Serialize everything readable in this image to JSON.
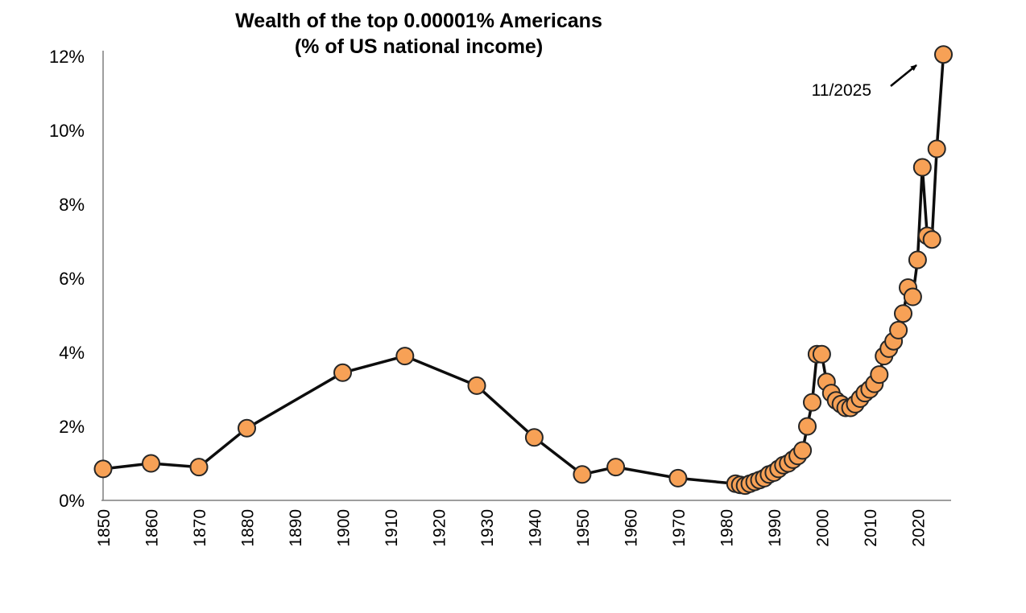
{
  "chart_data": {
    "type": "line",
    "title": "Wealth of the top 0.00001% Americans",
    "subtitle": "(% of US national income)",
    "xlabel": "",
    "ylabel": "",
    "xlim": [
      1850,
      2027
    ],
    "ylim": [
      0,
      12
    ],
    "grid": false,
    "legend": "none",
    "x_ticks": [
      1850,
      1860,
      1870,
      1880,
      1890,
      1900,
      1910,
      1920,
      1930,
      1940,
      1950,
      1960,
      1970,
      1980,
      1990,
      2000,
      2010,
      2020
    ],
    "y_ticks": [
      0,
      2,
      4,
      6,
      8,
      10,
      12
    ],
    "y_tick_labels": [
      "0%",
      "2%",
      "4%",
      "6%",
      "8%",
      "10%",
      "12%"
    ],
    "annotation": {
      "label": "11/2025",
      "target_x": 2025.4,
      "target_y": 12.05
    },
    "series": [
      {
        "name": "Wealth of the top 0.00001% Americans (% of US national income)",
        "points": [
          [
            1850,
            0.85
          ],
          [
            1860,
            1.0
          ],
          [
            1870,
            0.9
          ],
          [
            1880,
            1.95
          ],
          [
            1900,
            3.45
          ],
          [
            1913,
            3.9
          ],
          [
            1928,
            3.1
          ],
          [
            1940,
            1.7
          ],
          [
            1950,
            0.7
          ],
          [
            1957,
            0.9
          ],
          [
            1970,
            0.6
          ],
          [
            1982,
            0.45
          ],
          [
            1983,
            0.42
          ],
          [
            1984,
            0.4
          ],
          [
            1985,
            0.45
          ],
          [
            1986,
            0.5
          ],
          [
            1987,
            0.55
          ],
          [
            1988,
            0.6
          ],
          [
            1989,
            0.7
          ],
          [
            1990,
            0.75
          ],
          [
            1991,
            0.85
          ],
          [
            1992,
            0.95
          ],
          [
            1993,
            1.0
          ],
          [
            1994,
            1.1
          ],
          [
            1995,
            1.2
          ],
          [
            1996,
            1.35
          ],
          [
            1997,
            2.0
          ],
          [
            1998,
            2.65
          ],
          [
            1999,
            3.95
          ],
          [
            2000,
            3.95
          ],
          [
            2001,
            3.2
          ],
          [
            2002,
            2.9
          ],
          [
            2003,
            2.7
          ],
          [
            2004,
            2.6
          ],
          [
            2005,
            2.5
          ],
          [
            2006,
            2.5
          ],
          [
            2007,
            2.6
          ],
          [
            2008,
            2.75
          ],
          [
            2009,
            2.9
          ],
          [
            2010,
            3.0
          ],
          [
            2011,
            3.15
          ],
          [
            2012,
            3.4
          ],
          [
            2013,
            3.9
          ],
          [
            2014,
            4.1
          ],
          [
            2015,
            4.3
          ],
          [
            2016,
            4.6
          ],
          [
            2017,
            5.05
          ],
          [
            2018,
            5.75
          ],
          [
            2019,
            5.5
          ],
          [
            2020,
            6.5
          ],
          [
            2021,
            9.0
          ],
          [
            2022,
            7.15
          ],
          [
            2023,
            7.05
          ],
          [
            2024,
            9.5
          ],
          [
            2025.4,
            12.05
          ]
        ]
      }
    ],
    "colors": {
      "marker_fill": "#F7A156",
      "marker_edge": "#262626",
      "line": "#0d0d0d",
      "axis": "#7f7f7f",
      "text": "#000000"
    }
  }
}
